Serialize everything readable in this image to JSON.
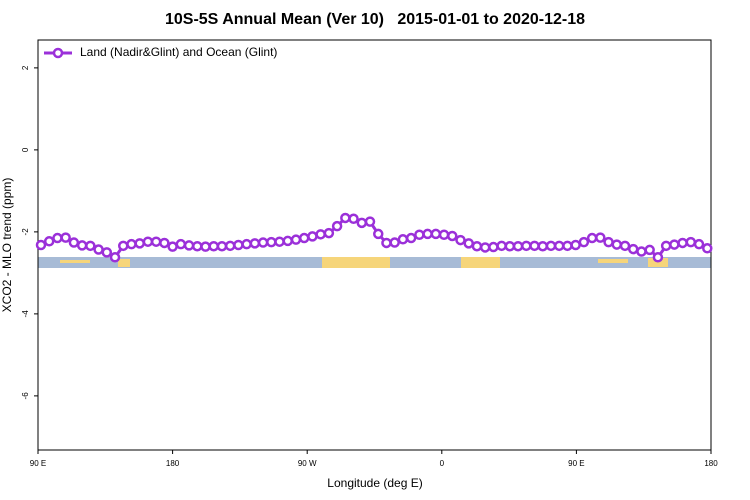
{
  "chart_data": {
    "type": "line",
    "title": "10S-5S Annual Mean (Ver 10)   2015-01-01 to 2020-12-18",
    "x_label": "Longitude (deg E)",
    "y_label": "XCO2 - MLO trend (ppm)",
    "xlim": [
      90,
      540
    ],
    "ylim": [
      2.68,
      -7.32
    ],
    "xticks": [
      {
        "value": 90,
        "label": "90 E"
      },
      180,
      {
        "value": 270,
        "label": "90 W"
      },
      {
        "value": 360,
        "label": "0"
      },
      {
        "value": 450,
        "label": "90 E"
      },
      {
        "value": 540,
        "label": "180"
      }
    ],
    "yticks": [
      2,
      0,
      -2,
      -4,
      -6
    ],
    "legend": "top-left",
    "x": [
      92,
      97.5,
      103,
      108.5,
      114,
      119.5,
      125,
      130.5,
      136,
      141.5,
      147,
      152.5,
      158,
      163.5,
      169,
      174.5,
      180,
      185.5,
      191,
      196.5,
      202,
      207.5,
      213,
      218.5,
      224,
      229.5,
      235,
      240.5,
      246,
      251.5,
      257,
      262.5,
      268,
      273.5,
      279,
      284.5,
      290,
      295.5,
      301,
      306.5,
      312,
      317.5,
      323,
      328.5,
      334,
      339.5,
      345,
      350.5,
      356,
      361.5,
      367,
      372.5,
      378,
      383.5,
      389,
      394.5,
      400,
      405.5,
      411,
      416.5,
      422,
      427.5,
      433,
      438.5,
      444,
      449.5,
      455,
      460.5,
      466,
      471.5,
      477,
      482.5,
      488,
      493.5,
      499,
      504.5,
      510,
      515.5,
      521,
      526.5,
      532,
      537.5
    ],
    "series": [
      {
        "name": "Land (Nadir&Glint) and Ocean (Glint)",
        "color": "#9b30d9",
        "values": [
          -2.32,
          -2.23,
          -2.15,
          -2.14,
          -2.26,
          -2.33,
          -2.34,
          -2.43,
          -2.5,
          -2.62,
          -2.34,
          -2.3,
          -2.28,
          -2.24,
          -2.24,
          -2.27,
          -2.36,
          -2.3,
          -2.33,
          -2.35,
          -2.36,
          -2.35,
          -2.35,
          -2.34,
          -2.32,
          -2.3,
          -2.28,
          -2.26,
          -2.25,
          -2.24,
          -2.22,
          -2.19,
          -2.15,
          -2.11,
          -2.06,
          -2.03,
          -1.86,
          -1.66,
          -1.68,
          -1.78,
          -1.75,
          -2.05,
          -2.27,
          -2.26,
          -2.18,
          -2.15,
          -2.07,
          -2.05,
          -2.05,
          -2.07,
          -2.1,
          -2.2,
          -2.28,
          -2.35,
          -2.38,
          -2.37,
          -2.34,
          -2.35,
          -2.35,
          -2.34,
          -2.34,
          -2.35,
          -2.34,
          -2.34,
          -2.34,
          -2.32,
          -2.25,
          -2.15,
          -2.14,
          -2.25,
          -2.31,
          -2.34,
          -2.42,
          -2.48,
          -2.44,
          -2.62,
          -2.34,
          -2.31,
          -2.27,
          -2.25,
          -2.3,
          -2.4
        ]
      }
    ]
  }
}
